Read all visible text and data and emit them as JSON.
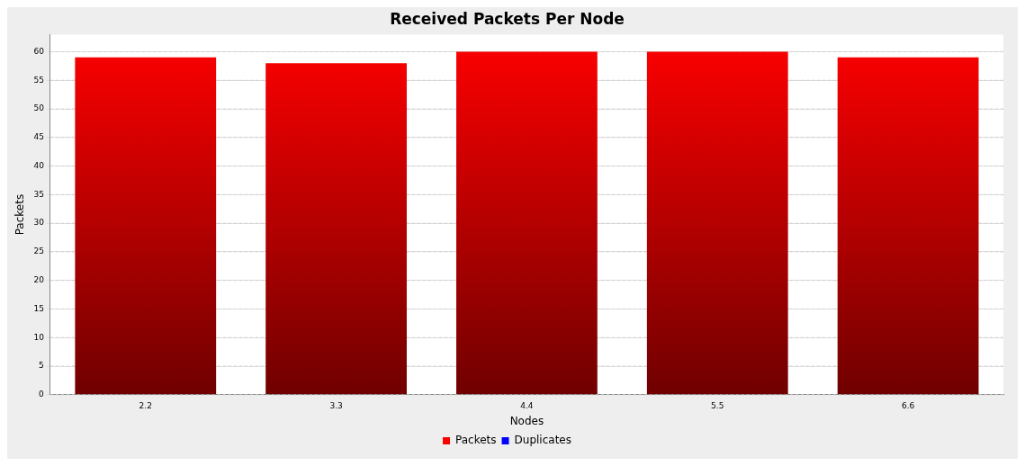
{
  "chart_data": {
    "type": "bar",
    "title": "Received Packets Per Node",
    "xlabel": "Nodes",
    "ylabel": "Packets",
    "categories": [
      "2.2",
      "3.3",
      "4.4",
      "5.5",
      "6.6"
    ],
    "series": [
      {
        "name": "Packets",
        "color": "#ff0000",
        "values": [
          59,
          58,
          60,
          60,
          59
        ]
      },
      {
        "name": "Duplicates",
        "color": "#0000ff",
        "values": [
          null,
          null,
          null,
          null,
          null
        ]
      }
    ],
    "ylim": [
      0,
      63
    ],
    "yticks": [
      0,
      5,
      10,
      15,
      20,
      25,
      30,
      35,
      40,
      45,
      50,
      55,
      60
    ],
    "grid": "y",
    "legend": "bottom"
  }
}
